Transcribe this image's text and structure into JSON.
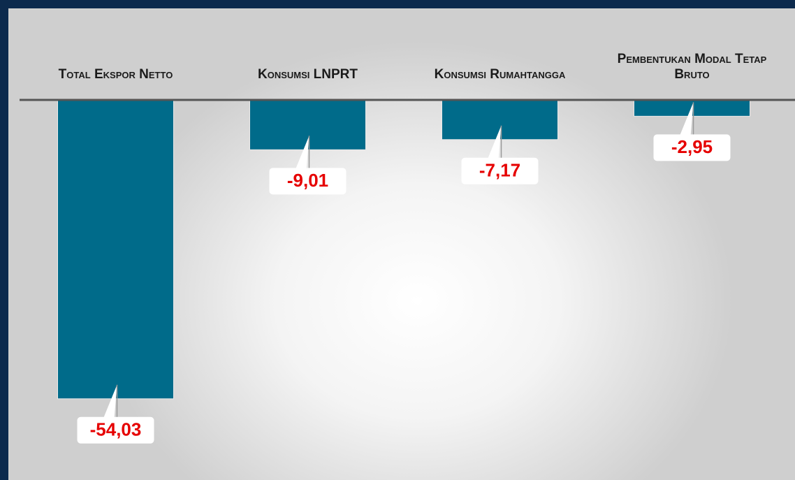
{
  "chart_data": {
    "type": "bar",
    "categories": [
      "Total Ekspor Netto",
      "Konsumsi LNPRT",
      "Konsumsi Rumahtangga",
      "Pembentukan Modal Tetap Bruto"
    ],
    "values": [
      -54.03,
      -9.01,
      -7.17,
      -2.95
    ],
    "value_labels": [
      "-54,03",
      "-9,01",
      "-7,17",
      "-2,95"
    ],
    "color": "#006b8a",
    "ylim": [
      -60,
      0
    ]
  }
}
